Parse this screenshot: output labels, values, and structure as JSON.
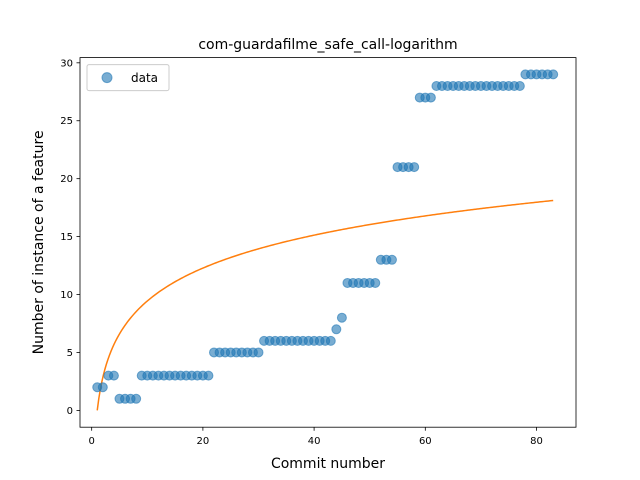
{
  "chart_data": {
    "type": "scatter",
    "title": "com-guardafilme_safe_call-logarithm",
    "xlabel": "Commit number",
    "ylabel": "Number of instance of a feature",
    "xlim": [
      -2.1,
      87.1
    ],
    "ylim": [
      -1.45,
      30.45
    ],
    "xticks": [
      0,
      20,
      40,
      60,
      80
    ],
    "yticks": [
      0,
      5,
      10,
      15,
      20,
      25,
      30
    ],
    "grid": false,
    "legend": {
      "placement": "top-left",
      "entries": [
        "data"
      ]
    },
    "colors": {
      "data": "#1f77b4",
      "fit": "#ff7f0e"
    },
    "series": [
      {
        "name": "data",
        "kind": "scatter",
        "x": [
          1,
          2,
          3,
          4,
          5,
          6,
          7,
          8,
          9,
          10,
          11,
          12,
          13,
          14,
          15,
          16,
          17,
          18,
          19,
          20,
          21,
          22,
          23,
          24,
          25,
          26,
          27,
          28,
          29,
          30,
          31,
          32,
          33,
          34,
          35,
          36,
          37,
          38,
          39,
          40,
          41,
          42,
          43,
          44,
          45,
          46,
          47,
          48,
          49,
          50,
          51,
          52,
          53,
          54,
          55,
          56,
          57,
          58,
          59,
          60,
          61,
          62,
          63,
          64,
          65,
          66,
          67,
          68,
          69,
          70,
          71,
          72,
          73,
          74,
          75,
          76,
          77,
          78,
          79,
          80,
          81,
          82,
          83
        ],
        "y": [
          2,
          2,
          3,
          3,
          1,
          1,
          1,
          1,
          3,
          3,
          3,
          3,
          3,
          3,
          3,
          3,
          3,
          3,
          3,
          3,
          3,
          5,
          5,
          5,
          5,
          5,
          5,
          5,
          5,
          5,
          6,
          6,
          6,
          6,
          6,
          6,
          6,
          6,
          6,
          6,
          6,
          6,
          6,
          7,
          8,
          11,
          11,
          11,
          11,
          11,
          11,
          13,
          13,
          13,
          21,
          21,
          21,
          21,
          27,
          27,
          27,
          28,
          28,
          28,
          28,
          28,
          28,
          28,
          28,
          28,
          28,
          28,
          28,
          28,
          28,
          28,
          28,
          29,
          29,
          29,
          29,
          29,
          29
        ]
      },
      {
        "name": "",
        "kind": "line",
        "model": "y = a*ln(x)",
        "a": 4.1,
        "x_range": [
          1,
          83
        ]
      }
    ]
  }
}
